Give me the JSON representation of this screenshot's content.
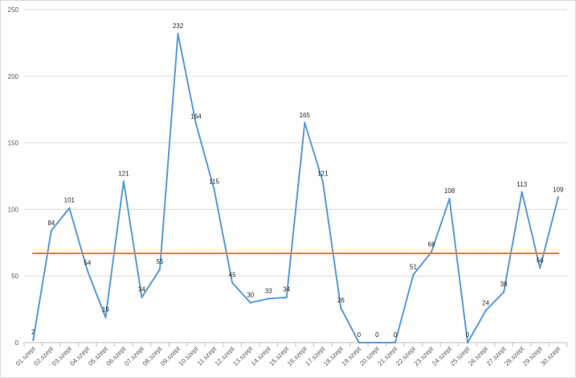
{
  "chart_data": {
    "type": "line",
    "categories": [
      "01.szept",
      "02.szept",
      "03.szept",
      "04.szept",
      "05.szept",
      "06.szept",
      "07.szept",
      "08.szept",
      "09.szept",
      "10.szept",
      "11.szept",
      "12.szept",
      "13.szept",
      "14.szept",
      "15.szept",
      "16.szept",
      "17.szept",
      "18.szept",
      "19.szept",
      "20.szept",
      "21.szept",
      "22.szept",
      "23.szept",
      "24.szept",
      "25.szept",
      "26.szept",
      "27.szept",
      "28.szept",
      "29.szept",
      "30.szept"
    ],
    "series": [
      {
        "values": [
          2,
          84,
          101,
          54,
          19,
          121,
          34,
          55,
          232,
          164,
          115,
          45,
          30,
          33,
          34,
          165,
          121,
          26,
          0,
          0,
          0,
          51,
          68,
          108,
          0,
          24,
          38,
          113,
          56,
          109
        ],
        "color": "#5b9bd5",
        "data_labels": true
      },
      {
        "values": [
          67,
          67,
          67,
          67,
          67,
          67,
          67,
          67,
          67,
          67,
          67,
          67,
          67,
          67,
          67,
          67,
          67,
          67,
          67,
          67,
          67,
          67,
          67,
          67,
          67,
          67,
          67,
          67,
          67,
          67
        ],
        "color": "#ed7d31",
        "data_labels": false
      }
    ],
    "ylim": [
      0,
      250
    ],
    "yticks": [
      0,
      50,
      100,
      150,
      200,
      250
    ],
    "grid": true,
    "title": "",
    "xlabel": "",
    "ylabel": "",
    "legend": "none"
  }
}
